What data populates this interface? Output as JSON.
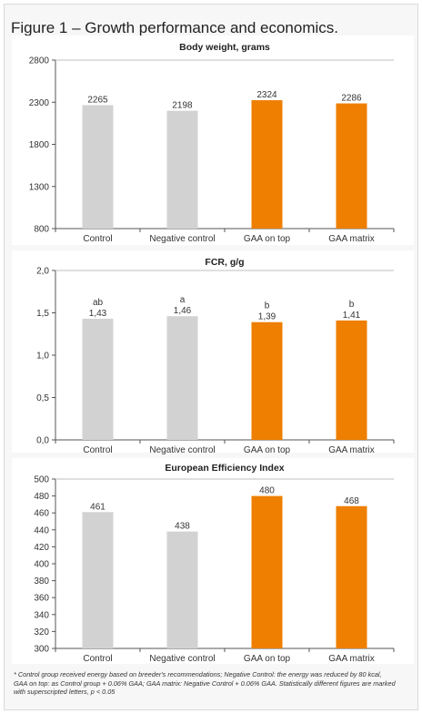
{
  "figure_title": "Figure 1 – Growth performance and economics.",
  "colors": {
    "control": "#d2d2d2",
    "gaa": "#ee7f00",
    "axis": "#555555",
    "grid": "#bfbfbf"
  },
  "chart_data": [
    {
      "type": "bar",
      "title": "Body weight, grams",
      "categories": [
        "Control",
        "Negative control",
        "GAA on top",
        "GAA matrix"
      ],
      "values": [
        2265,
        2198,
        2324,
        2286
      ],
      "value_labels": [
        "2265",
        "2198",
        "2324",
        "2286"
      ],
      "superscripts": [
        "",
        "",
        "",
        ""
      ],
      "ylim": [
        800,
        2800
      ],
      "yticks": [
        800,
        1300,
        1800,
        2300,
        2800
      ],
      "ytick_labels": [
        "800",
        "1300",
        "1800",
        "2300",
        "2800"
      ],
      "grid": false
    },
    {
      "type": "bar",
      "title": "FCR, g/g",
      "categories": [
        "Control",
        "Negative control",
        "GAA on top",
        "GAA matrix"
      ],
      "values": [
        1.43,
        1.46,
        1.39,
        1.41
      ],
      "value_labels": [
        "1,43",
        "1,46",
        "1,39",
        "1,41"
      ],
      "superscripts": [
        "ab",
        "a",
        "b",
        "b"
      ],
      "ylim": [
        0,
        2.0
      ],
      "yticks": [
        0,
        0.5,
        1.0,
        1.5,
        2.0
      ],
      "ytick_labels": [
        "0,0",
        "0,5",
        "1,0",
        "1,5",
        "2,0"
      ],
      "grid": false
    },
    {
      "type": "bar",
      "title": "European Efficiency Index",
      "categories": [
        "Control",
        "Negative control",
        "GAA on top",
        "GAA matrix"
      ],
      "values": [
        461,
        438,
        480,
        468
      ],
      "value_labels": [
        "461",
        "438",
        "480",
        "468"
      ],
      "superscripts": [
        "",
        "",
        "",
        ""
      ],
      "ylim": [
        300,
        500
      ],
      "yticks": [
        300,
        320,
        340,
        360,
        380,
        400,
        420,
        440,
        460,
        480,
        500
      ],
      "ytick_labels": [
        "300",
        "320",
        "340",
        "360",
        "380",
        "400",
        "420",
        "440",
        "460",
        "480",
        "500"
      ],
      "grid": false
    }
  ],
  "footnote": "* Control group received energy based on breeder's recommendations; Negative Control: the energy was reduced by 80 kcal, GAA on top: as Control group + 0.06% GAA; GAA matrix: Negative Control + 0.06% GAA. Statistically different figures are marked with superscripted letters, p < 0.05"
}
